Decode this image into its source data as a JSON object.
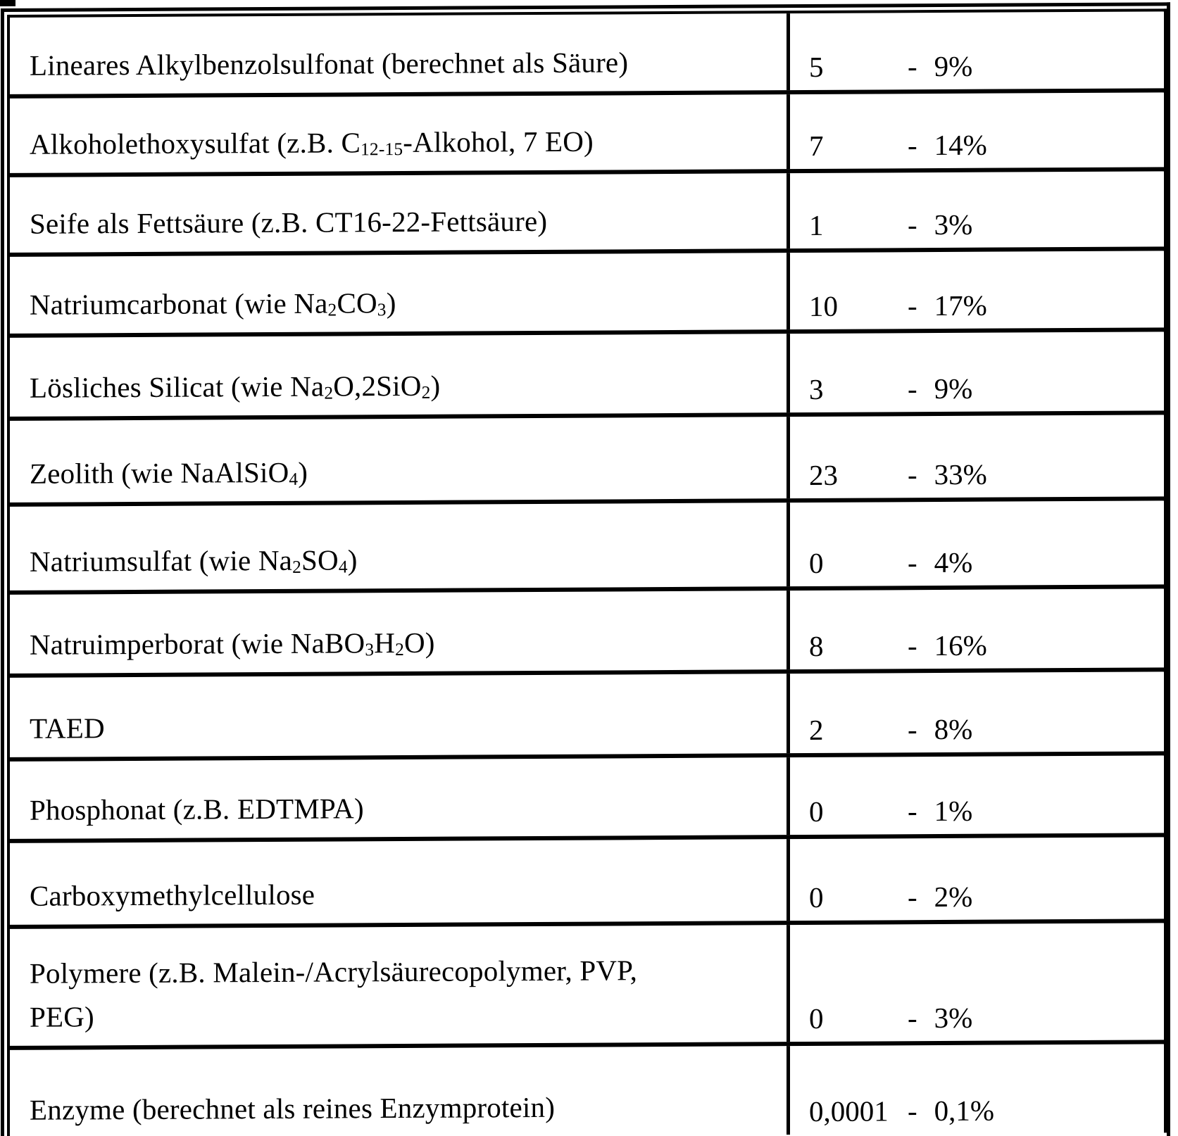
{
  "page": {
    "kind": "scanned-patent-table",
    "language": "de",
    "background_color": "#ffffff",
    "ink_color": "#000000"
  },
  "table": {
    "value_separator": "-",
    "rows": [
      {
        "ingredient": "Lineares Alkylbenzolsulfonat (berechnet als Säure)",
        "label_segments": [
          {
            "text": "Lineares Alkylbenzolsulfonat (berechnet als Säure)"
          }
        ],
        "value_min": "5",
        "value_max": "9%"
      },
      {
        "ingredient": "Alkoholethoxysulfat (z.B. C12-15-Alkohol, 7 EO)",
        "label_segments": [
          {
            "text": "Alkoholethoxysulfat (z.B. C"
          },
          {
            "sub": "12-15"
          },
          {
            "text": "-Alkohol, 7 EO)"
          }
        ],
        "value_min": "7",
        "value_max": "14%"
      },
      {
        "ingredient": "Seife als Fettsäure (z.B. CT16-22-Fettsäure)",
        "label_segments": [
          {
            "text": "Seife als Fettsäure (z.B. CT16-22-Fettsäure)"
          }
        ],
        "value_min": "1",
        "value_max": "3%"
      },
      {
        "ingredient": "Natriumcarbonat (wie Na2CO3)",
        "label_segments": [
          {
            "text": "Natriumcarbonat (wie Na"
          },
          {
            "sub": "2"
          },
          {
            "text": "CO"
          },
          {
            "sub": "3"
          },
          {
            "text": ")"
          }
        ],
        "value_min": "10",
        "value_max": "17%"
      },
      {
        "ingredient": "Lösliches Silicat (wie Na2O,2SiO2)",
        "label_segments": [
          {
            "text": "Lösliches Silicat (wie Na"
          },
          {
            "sub": "2"
          },
          {
            "text": "O,2SiO"
          },
          {
            "sub": "2"
          },
          {
            "text": ")"
          }
        ],
        "value_min": "3",
        "value_max": "9%"
      },
      {
        "ingredient": "Zeolith (wie NaAlSiO4)",
        "label_segments": [
          {
            "text": "Zeolith (wie NaAlSiO"
          },
          {
            "sub": "4"
          },
          {
            "text": ")"
          }
        ],
        "value_min": "23",
        "value_max": "33%"
      },
      {
        "ingredient": "Natriumsulfat (wie Na2SO4)",
        "label_segments": [
          {
            "text": "Natriumsulfat (wie Na"
          },
          {
            "sub": "2"
          },
          {
            "text": "SO"
          },
          {
            "sub": "4"
          },
          {
            "text": ")"
          }
        ],
        "value_min": "0",
        "value_max": "4%"
      },
      {
        "ingredient": "Natruimperborat (wie NaBO3H2O)",
        "label_segments": [
          {
            "text": "Natruimperborat (wie NaBO"
          },
          {
            "sub": "3"
          },
          {
            "text": "H"
          },
          {
            "sub": "2"
          },
          {
            "text": "O)"
          }
        ],
        "value_min": "8",
        "value_max": "16%"
      },
      {
        "ingredient": "TAED",
        "label_segments": [
          {
            "text": "TAED"
          }
        ],
        "value_min": "2",
        "value_max": "8%"
      },
      {
        "ingredient": "Phosphonat (z.B. EDTMPA)",
        "label_segments": [
          {
            "text": "Phosphonat (z.B. EDTMPA)"
          }
        ],
        "value_min": "0",
        "value_max": "1%"
      },
      {
        "ingredient": "Carboxymethylcellulose",
        "label_segments": [
          {
            "text": "Carboxymethylcellulose"
          }
        ],
        "value_min": "0",
        "value_max": "2%"
      },
      {
        "ingredient": "Polymere (z.B. Malein-/Acrylsäurecopolymer, PVP, PEG)",
        "label_segments": [
          {
            "text": "Polymere (z.B. Malein-/Acrylsäurecopolymer, PVP,"
          },
          {
            "br": true
          },
          {
            "text": "PEG)"
          }
        ],
        "value_min": "0",
        "value_max": "3%"
      },
      {
        "ingredient": "Enzyme (berechnet als reines Enzymprotein)",
        "label_segments": [
          {
            "text": "Enzyme (berechnet als reines Enzymprotein)"
          }
        ],
        "value_min": "0,0001",
        "value_max": "0,1%"
      }
    ]
  }
}
